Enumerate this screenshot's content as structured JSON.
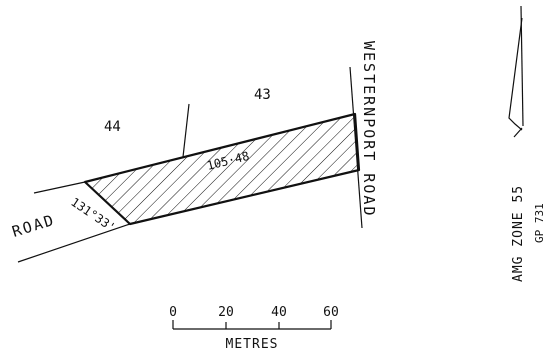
{
  "lots": {
    "left": "44",
    "right": "43"
  },
  "parcel": {
    "length": "105·48",
    "angle": "131°33'"
  },
  "roads": {
    "left": "ROAD",
    "right": "WESTERNPORT ROAD"
  },
  "scale": {
    "ticks": [
      "0",
      "20",
      "40",
      "60"
    ],
    "unit": "METRES"
  },
  "reference": {
    "zone": "AMG ZONE 55",
    "plan": "GP 731"
  },
  "colors": {
    "ink": "#111111",
    "paper": "#ffffff"
  }
}
